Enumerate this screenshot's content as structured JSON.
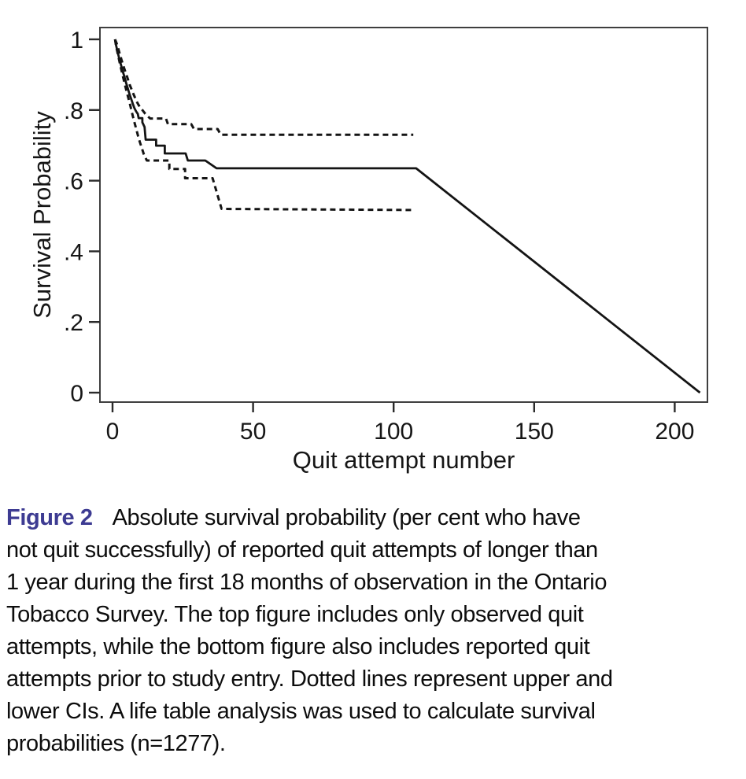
{
  "figure": {
    "caption": {
      "label": "Figure 2",
      "label_color": "#3d3b92",
      "lines": [
        "Absolute survival probability (per cent who have",
        "not quit successfully) of reported quit attempts of longer than",
        "1 year during the first 18 months of observation in the Ontario",
        "Tobacco Survey. The top figure includes only observed quit",
        "attempts, while the bottom figure also includes reported quit",
        "attempts prior to study entry. Dotted lines represent upper and",
        "lower CIs. A life table analysis was used to calculate survival",
        "probabilities (n=1277)."
      ]
    }
  },
  "chart_data": {
    "type": "line",
    "subtype": "life-table-survival-curve",
    "title": "",
    "xlabel": "Quit attempt number",
    "ylabel": "Survival Probability",
    "xlim": [
      0,
      212
    ],
    "ylim": [
      0,
      1
    ],
    "grid": false,
    "legend": "none",
    "line_color": "#141414",
    "frame_color": "#3f3f3f",
    "xticks": [
      {
        "v": 0,
        "label": "0"
      },
      {
        "v": 50,
        "label": "50"
      },
      {
        "v": 100,
        "label": "100"
      },
      {
        "v": 150,
        "label": "150"
      },
      {
        "v": 200,
        "label": "200"
      }
    ],
    "yticks": [
      {
        "v": 0,
        "label": "0"
      },
      {
        "v": 0.2,
        "label": ".2"
      },
      {
        "v": 0.4,
        "label": ".4"
      },
      {
        "v": 0.6,
        "label": ".6"
      },
      {
        "v": 0.8,
        "label": ".8"
      },
      {
        "v": 1,
        "label": "1"
      }
    ],
    "series": [
      {
        "name": "survival-estimate",
        "dashed": false,
        "stroke_width": 2.8,
        "points": [
          [
            0.9,
            1.0
          ],
          [
            1.2,
            0.985
          ],
          [
            1.8,
            0.965
          ],
          [
            2.4,
            0.945
          ],
          [
            3.0,
            0.928
          ],
          [
            3.6,
            0.91
          ],
          [
            4.2,
            0.895
          ],
          [
            4.8,
            0.878
          ],
          [
            5.4,
            0.862
          ],
          [
            6.0,
            0.846
          ],
          [
            6.6,
            0.832
          ],
          [
            7.2,
            0.818
          ],
          [
            7.8,
            0.805
          ],
          [
            8.4,
            0.796
          ],
          [
            9.0,
            0.789
          ],
          [
            9.3,
            0.777
          ],
          [
            10.6,
            0.777
          ],
          [
            10.6,
            0.765
          ],
          [
            11.4,
            0.752
          ],
          [
            11.8,
            0.716
          ],
          [
            15.5,
            0.716
          ],
          [
            15.5,
            0.699
          ],
          [
            18.6,
            0.699
          ],
          [
            18.6,
            0.677
          ],
          [
            26.0,
            0.677
          ],
          [
            26.8,
            0.657
          ],
          [
            33.0,
            0.657
          ],
          [
            37.0,
            0.635
          ],
          [
            108.0,
            0.635
          ],
          [
            209.0,
            0.0
          ]
        ]
      },
      {
        "name": "upper-ci",
        "dashed": true,
        "stroke_width": 3,
        "points": [
          [
            0.9,
            1.0
          ],
          [
            1.4,
            0.99
          ],
          [
            2.0,
            0.975
          ],
          [
            2.6,
            0.958
          ],
          [
            3.2,
            0.942
          ],
          [
            3.8,
            0.926
          ],
          [
            4.4,
            0.912
          ],
          [
            5.0,
            0.898
          ],
          [
            5.6,
            0.884
          ],
          [
            6.2,
            0.87
          ],
          [
            6.8,
            0.858
          ],
          [
            7.4,
            0.846
          ],
          [
            8.0,
            0.835
          ],
          [
            8.6,
            0.824
          ],
          [
            9.2,
            0.815
          ],
          [
            10.0,
            0.806
          ],
          [
            10.8,
            0.798
          ],
          [
            11.6,
            0.79
          ],
          [
            12.4,
            0.783
          ],
          [
            13.4,
            0.776
          ],
          [
            19.0,
            0.776
          ],
          [
            19.7,
            0.76
          ],
          [
            28.0,
            0.76
          ],
          [
            29.0,
            0.746
          ],
          [
            37.4,
            0.746
          ],
          [
            38.5,
            0.73
          ],
          [
            107.0,
            0.73
          ]
        ]
      },
      {
        "name": "lower-ci",
        "dashed": true,
        "stroke_width": 3,
        "points": [
          [
            0.9,
            1.0
          ],
          [
            1.3,
            0.98
          ],
          [
            1.9,
            0.958
          ],
          [
            2.5,
            0.936
          ],
          [
            3.1,
            0.915
          ],
          [
            3.7,
            0.895
          ],
          [
            4.3,
            0.875
          ],
          [
            4.9,
            0.856
          ],
          [
            5.5,
            0.838
          ],
          [
            6.1,
            0.82
          ],
          [
            6.7,
            0.8
          ],
          [
            7.3,
            0.78
          ],
          [
            7.9,
            0.762
          ],
          [
            8.5,
            0.744
          ],
          [
            9.1,
            0.726
          ],
          [
            9.7,
            0.71
          ],
          [
            10.4,
            0.693
          ],
          [
            11.1,
            0.676
          ],
          [
            12.2,
            0.657
          ],
          [
            20.2,
            0.657
          ],
          [
            20.2,
            0.633
          ],
          [
            25.8,
            0.633
          ],
          [
            25.8,
            0.607
          ],
          [
            35.6,
            0.607
          ],
          [
            38.8,
            0.52
          ],
          [
            107.0,
            0.517
          ]
        ]
      }
    ]
  }
}
